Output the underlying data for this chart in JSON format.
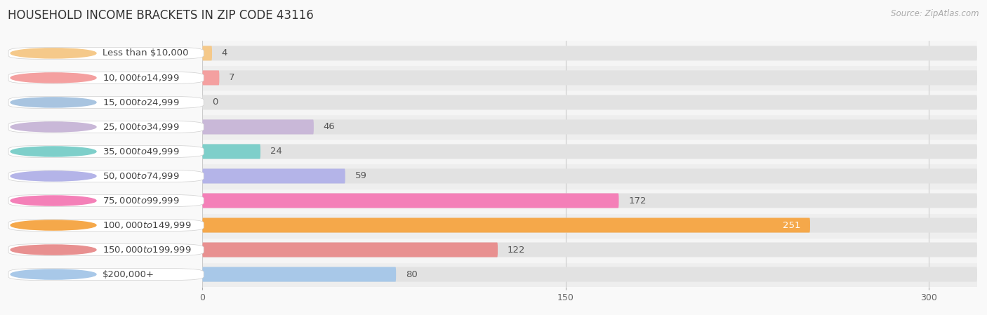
{
  "title": "HOUSEHOLD INCOME BRACKETS IN ZIP CODE 43116",
  "source": "Source: ZipAtlas.com",
  "categories": [
    "Less than $10,000",
    "$10,000 to $14,999",
    "$15,000 to $24,999",
    "$25,000 to $34,999",
    "$35,000 to $49,999",
    "$50,000 to $74,999",
    "$75,000 to $99,999",
    "$100,000 to $149,999",
    "$150,000 to $199,999",
    "$200,000+"
  ],
  "values": [
    4,
    7,
    0,
    46,
    24,
    59,
    172,
    251,
    122,
    80
  ],
  "bar_colors": [
    "#f5c98a",
    "#f4a0a0",
    "#a8c4e0",
    "#c9b8d8",
    "#7ecfca",
    "#b4b4e8",
    "#f480b8",
    "#f5a84a",
    "#e89090",
    "#a8c8e8"
  ],
  "row_colors": [
    "#eeeeee",
    "#f5f5f5"
  ],
  "xlim": [
    0,
    320
  ],
  "xticks": [
    0,
    150,
    300
  ],
  "title_fontsize": 12,
  "source_fontsize": 8.5,
  "label_fontsize": 9.5,
  "value_fontsize": 9.5,
  "background_color": "#f9f9f9",
  "bar_height": 0.6,
  "track_color": "#e2e2e2",
  "grid_color": "#cccccc"
}
